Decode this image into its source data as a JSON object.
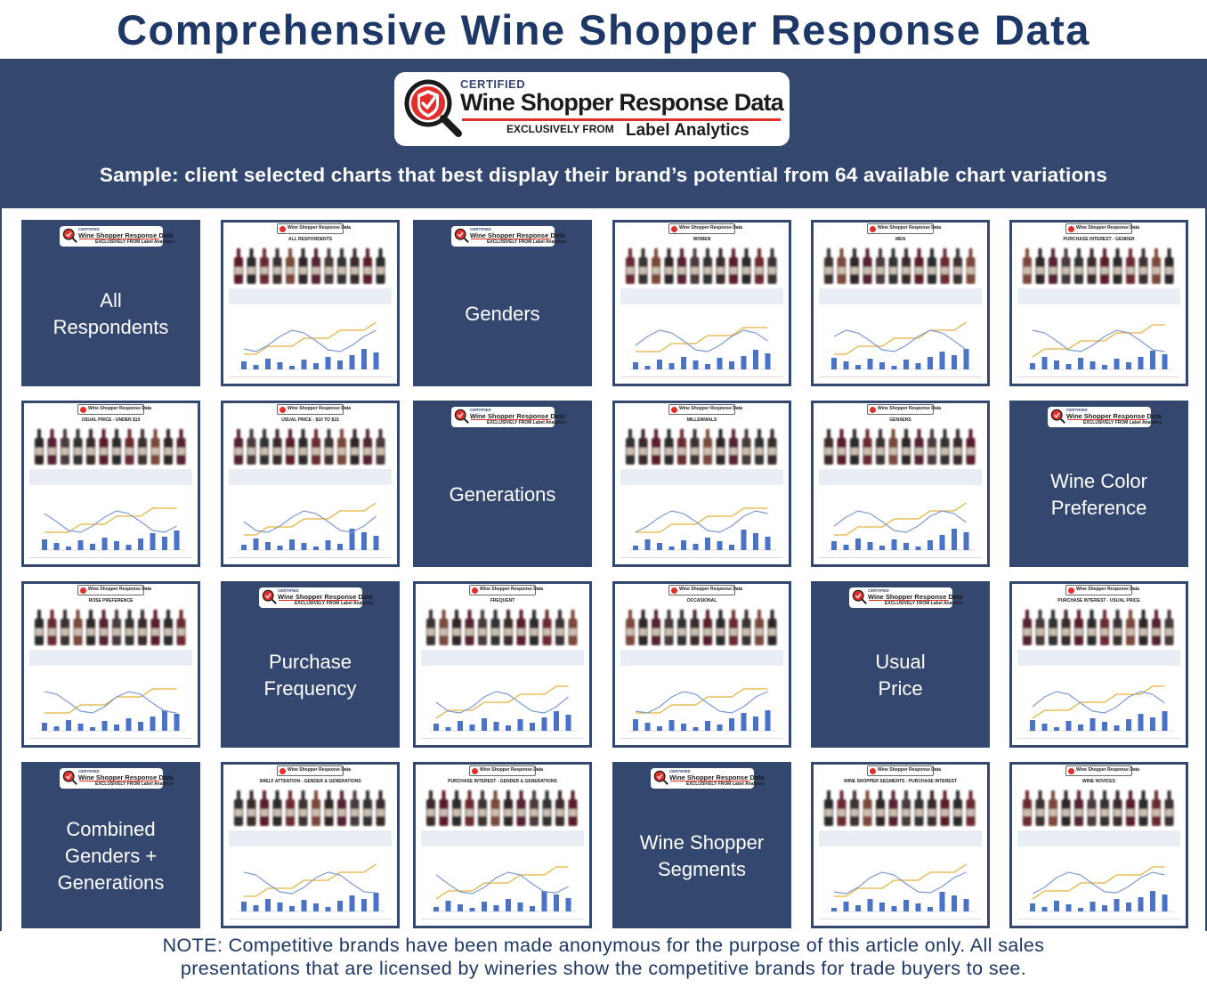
{
  "page": {
    "title": "Comprehensive Wine Shopper Response Data",
    "subtitle": "Sample: client selected charts that best display their brand’s potential from 64 available chart variations",
    "note_line1": "NOTE: Competitive brands have been made anonymous for the purpose of this article only. All sales",
    "note_line2": "presentations that are licensed by wineries show the competitive brands for trade buyers to see."
  },
  "logo": {
    "certified": "CERTIFIED",
    "main": "Wine Shopper Response Data",
    "exclusively_from": "EXCLUSIVELY FROM",
    "brand": "Label Analytics",
    "seal_icon": "magnifier-check-seal-icon",
    "accent_color": "#e22f2b",
    "navy_color": "#34476f"
  },
  "tiles": [
    {
      "kind": "label",
      "label": "All\nRespondents"
    },
    {
      "kind": "chart",
      "title": "ALL RESPONDENTS"
    },
    {
      "kind": "label",
      "label": "Genders"
    },
    {
      "kind": "chart",
      "title": "WOMEN"
    },
    {
      "kind": "chart",
      "title": "MEN"
    },
    {
      "kind": "chart",
      "title": "PURCHASE INTEREST - GENDER"
    },
    {
      "kind": "chart",
      "title": "USUAL PRICE - UNDER $10"
    },
    {
      "kind": "chart",
      "title": "USUAL PRICE - $10 TO $15"
    },
    {
      "kind": "label",
      "label": "Generations"
    },
    {
      "kind": "chart",
      "title": "MILLENNIALS"
    },
    {
      "kind": "chart",
      "title": "GENXERS"
    },
    {
      "kind": "label",
      "label": "Wine Color\nPreference"
    },
    {
      "kind": "chart",
      "title": "ROSE PREFERENCE"
    },
    {
      "kind": "label",
      "label": "Purchase\nFrequency"
    },
    {
      "kind": "chart",
      "title": "FREQUENT"
    },
    {
      "kind": "chart",
      "title": "OCCASIONAL"
    },
    {
      "kind": "label",
      "label": "Usual\nPrice"
    },
    {
      "kind": "chart",
      "title": "PURCHASE INTEREST - USUAL PRICE"
    },
    {
      "kind": "label",
      "label": "Combined\nGenders +\nGenerations"
    },
    {
      "kind": "chart",
      "title": "SHELF ATTENTION - GENDER & GENERATIONS"
    },
    {
      "kind": "chart",
      "title": "PURCHASE INTEREST - GENDER & GENERATIONS"
    },
    {
      "kind": "label",
      "label": "Wine Shopper\nSegments"
    },
    {
      "kind": "chart",
      "title": "WINE SHOPPER SEGMENTS - PURCHASE INTEREST"
    },
    {
      "kind": "chart",
      "title": "WINE NOVICES"
    }
  ]
}
